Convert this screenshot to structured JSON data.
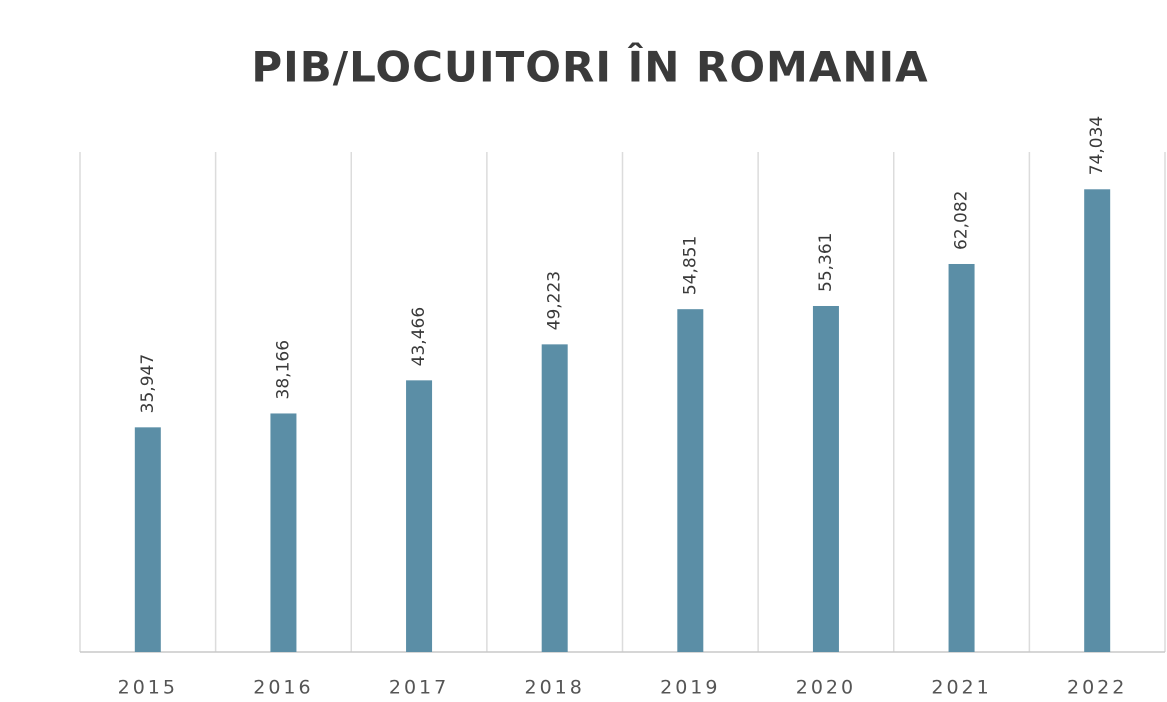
{
  "chart_data": {
    "type": "bar",
    "title": "PIB/LOCUITORI ÎN ROMANIA",
    "categories": [
      "2015",
      "2016",
      "2017",
      "2018",
      "2019",
      "2020",
      "2021",
      "2022"
    ],
    "values": [
      35947,
      38166,
      43466,
      49223,
      54851,
      55361,
      62082,
      74034
    ],
    "value_labels": [
      "35,947",
      "38,166",
      "43,466",
      "49,223",
      "54,851",
      "55,361",
      "62,082",
      "74,034"
    ],
    "color": "#5b8ea6",
    "ylim": [
      0,
      80000
    ]
  }
}
